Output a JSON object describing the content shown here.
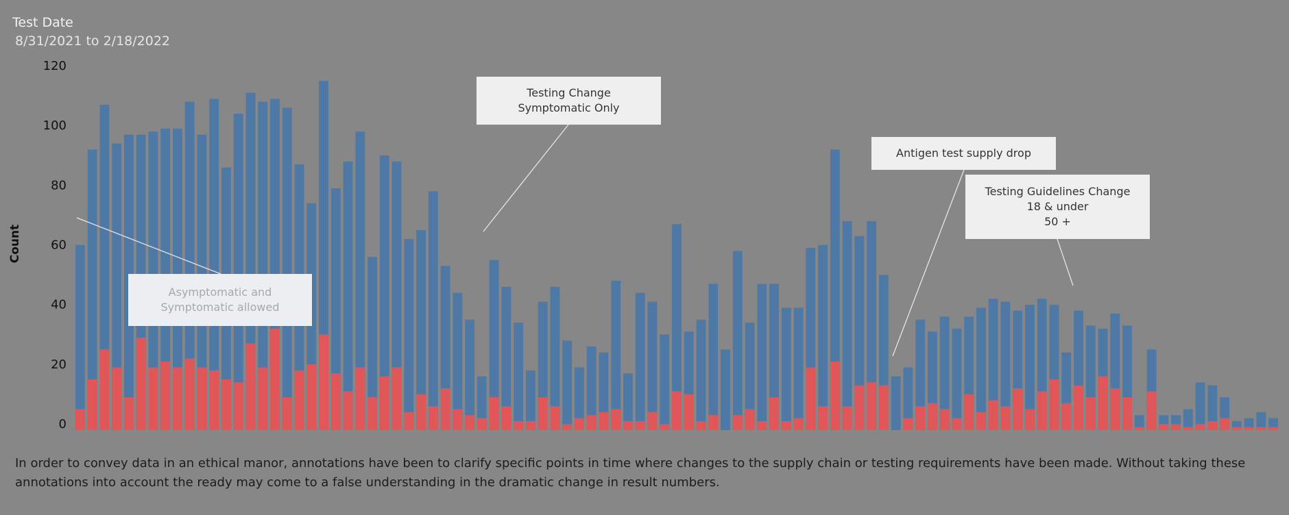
{
  "header": {
    "title": "Test Date",
    "date_range": "8/31/2021 to 2/18/2022"
  },
  "chart_data": {
    "type": "bar",
    "stacked": false,
    "ylabel": "Count",
    "ylim": [
      0,
      120
    ],
    "yticks": [
      0,
      20,
      40,
      60,
      80,
      100,
      120
    ],
    "grid": false,
    "series": [
      {
        "color": "#4e79a7",
        "values": [
          62,
          94,
          109,
          96,
          99,
          99,
          100,
          101,
          101,
          110,
          99,
          111,
          88,
          106,
          113,
          110,
          111,
          108,
          89,
          76,
          117,
          81,
          90,
          100,
          58,
          92,
          90,
          64,
          67,
          80,
          55,
          46,
          37,
          18,
          57,
          48,
          36,
          20,
          43,
          48,
          30,
          21,
          28,
          26,
          50,
          19,
          46,
          43,
          32,
          69,
          33,
          37,
          49,
          27,
          60,
          36,
          49,
          49,
          41,
          41,
          61,
          62,
          94,
          70,
          65,
          70,
          52,
          18,
          21,
          37,
          33,
          38,
          34,
          38,
          41,
          44,
          43,
          40,
          42,
          44,
          42,
          26,
          40,
          35,
          34,
          39,
          35,
          5,
          27,
          5,
          5,
          7,
          16,
          15,
          11,
          3,
          4,
          6,
          4
        ]
      },
      {
        "color": "#e15759",
        "values": [
          7,
          17,
          27,
          21,
          11,
          31,
          21,
          23,
          21,
          24,
          21,
          20,
          17,
          16,
          29,
          21,
          34,
          11,
          20,
          22,
          32,
          19,
          13,
          21,
          11,
          18,
          21,
          6,
          12,
          8,
          14,
          7,
          5,
          4,
          11,
          8,
          3,
          3,
          11,
          8,
          2,
          4,
          5,
          6,
          7,
          3,
          3,
          6,
          2,
          13,
          12,
          3,
          5,
          0,
          5,
          7,
          3,
          11,
          3,
          4,
          21,
          8,
          23,
          8,
          15,
          16,
          15,
          0,
          4,
          8,
          9,
          7,
          4,
          12,
          6,
          10,
          8,
          14,
          7,
          13,
          17,
          9,
          15,
          11,
          18,
          14,
          11,
          1,
          13,
          2,
          2,
          1,
          2,
          3,
          4,
          1,
          1,
          1,
          1
        ]
      }
    ]
  },
  "annotations": {
    "testing_change": "Testing Change\nSymptomatic Only",
    "asymptomatic": "Asymptomatic and\nSymptomatic allowed",
    "antigen": "Antigen test supply drop",
    "guidelines": "Testing Guidelines Change\n18 & under\n50 +"
  },
  "footnote": "In order to convey data in an ethical manor, annotations have been to clarify specific points in time where changes to the supply chain or testing requirements have been made. Without taking these annotations into account the ready may come to a false understanding in the dramatic change in result numbers."
}
